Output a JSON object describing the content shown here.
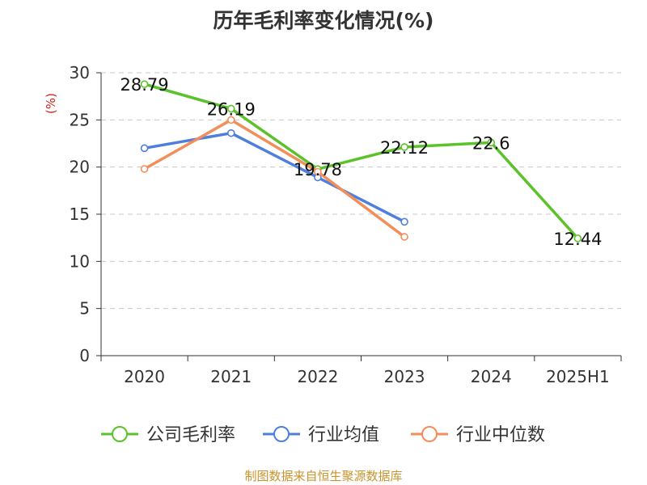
{
  "chart_data": {
    "type": "line",
    "title": "历年毛利率变化情况(%)",
    "ylabel": "(%)",
    "xlabel": "",
    "categories": [
      "2020",
      "2021",
      "2022",
      "2023",
      "2024",
      "2025H1"
    ],
    "ylim": [
      0,
      30
    ],
    "yticks": [
      0,
      5,
      10,
      15,
      20,
      25,
      30
    ],
    "grid": true,
    "legend_position": "bottom",
    "series": [
      {
        "name": "公司毛利率",
        "color": "#5cc22b",
        "values": [
          28.79,
          26.19,
          19.78,
          22.12,
          22.6,
          12.44
        ],
        "labels": [
          "28.79",
          "26.19",
          "19.78",
          "22.12",
          "22.6",
          "12.44"
        ]
      },
      {
        "name": "行业均值",
        "color": "#4f7fdc",
        "values": [
          22.0,
          23.6,
          18.9,
          14.2,
          null,
          null
        ]
      },
      {
        "name": "行业中位数",
        "color": "#f28e5a",
        "values": [
          19.8,
          25.0,
          19.5,
          12.6,
          null,
          null
        ]
      }
    ]
  },
  "source_note": "制图数据来自恒生聚源数据库"
}
